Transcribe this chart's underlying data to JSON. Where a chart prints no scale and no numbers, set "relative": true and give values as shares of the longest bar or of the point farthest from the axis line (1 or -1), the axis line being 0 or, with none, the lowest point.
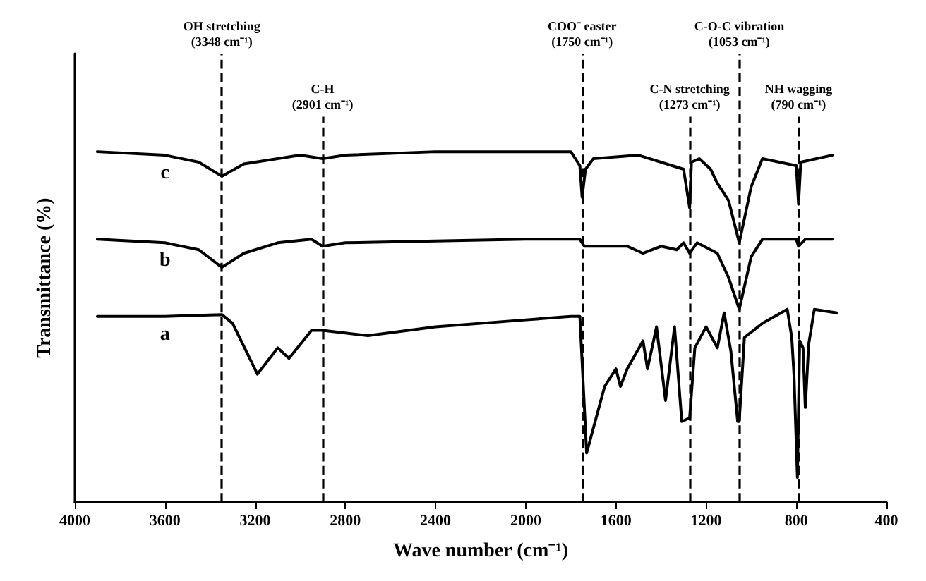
{
  "chart_data": {
    "type": "line",
    "relative": true,
    "xlabel": "Wave number (cm⁻¹)",
    "ylabel": "Transmittance (%)",
    "xlim": [
      4000,
      400
    ],
    "xticks": [
      4000,
      3600,
      3200,
      2800,
      2400,
      2000,
      1600,
      1200,
      800,
      400
    ],
    "tick_labels": "x",
    "legend": false,
    "grid": false,
    "marker": "none",
    "line_style": "solid",
    "series": [
      {
        "name": "c",
        "color": "#000000",
        "x": [
          3900,
          3600,
          3450,
          3348,
          3250,
          3000,
          2901,
          2800,
          2400,
          2000,
          1800,
          1760,
          1750,
          1735,
          1700,
          1500,
          1350,
          1300,
          1273,
          1265,
          1230,
          1180,
          1150,
          1100,
          1053,
          1000,
          950,
          800,
          790,
          780,
          710,
          640
        ],
        "values": [
          1.0,
          0.99,
          0.97,
          0.93,
          0.965,
          0.99,
          0.98,
          0.99,
          1.0,
          1.0,
          1.0,
          0.96,
          0.87,
          0.95,
          0.98,
          0.99,
          0.96,
          0.95,
          0.84,
          0.97,
          0.98,
          0.95,
          0.91,
          0.86,
          0.74,
          0.9,
          0.98,
          0.96,
          0.85,
          0.97,
          0.98,
          0.99
        ]
      },
      {
        "name": "b",
        "color": "#000000",
        "x": [
          3900,
          3600,
          3450,
          3348,
          3250,
          3100,
          2950,
          2901,
          2800,
          2400,
          2000,
          1760,
          1740,
          1550,
          1480,
          1400,
          1330,
          1300,
          1273,
          1240,
          1150,
          1100,
          1053,
          1000,
          950,
          800,
          790,
          760,
          640
        ],
        "values": [
          0.75,
          0.74,
          0.72,
          0.67,
          0.71,
          0.74,
          0.75,
          0.73,
          0.74,
          0.745,
          0.75,
          0.75,
          0.73,
          0.73,
          0.71,
          0.73,
          0.72,
          0.74,
          0.71,
          0.74,
          0.71,
          0.64,
          0.55,
          0.7,
          0.75,
          0.75,
          0.73,
          0.75,
          0.75
        ]
      },
      {
        "name": "a",
        "color": "#000000",
        "x": [
          3900,
          3600,
          3348,
          3300,
          3190,
          3100,
          3050,
          2950,
          2901,
          2700,
          2400,
          2000,
          1800,
          1760,
          1730,
          1650,
          1600,
          1580,
          1550,
          1480,
          1460,
          1420,
          1380,
          1340,
          1308,
          1273,
          1250,
          1200,
          1150,
          1120,
          1090,
          1060,
          1053,
          1030,
          950,
          840,
          820,
          810,
          795,
          785,
          770,
          760,
          745,
          720,
          620
        ],
        "values": [
          0.53,
          0.53,
          0.535,
          0.51,
          0.365,
          0.44,
          0.41,
          0.49,
          0.49,
          0.475,
          0.5,
          0.52,
          0.53,
          0.53,
          0.14,
          0.33,
          0.38,
          0.33,
          0.38,
          0.46,
          0.38,
          0.5,
          0.29,
          0.5,
          0.23,
          0.24,
          0.44,
          0.5,
          0.44,
          0.54,
          0.43,
          0.23,
          0.23,
          0.47,
          0.51,
          0.55,
          0.47,
          0.36,
          0.07,
          0.46,
          0.44,
          0.27,
          0.45,
          0.55,
          0.54
        ]
      }
    ],
    "ref_lines": [
      {
        "axis": "x",
        "value": 3348,
        "label": "OH stretching (3348 cm⁻¹)",
        "line_style": "dashed",
        "color": "#000000"
      },
      {
        "axis": "x",
        "value": 2901,
        "label": "C-H (2901 cm⁻¹)",
        "line_style": "dashed",
        "color": "#000000"
      },
      {
        "axis": "x",
        "value": 1750,
        "label": "COO⁻ easter (1750 cm⁻¹)",
        "line_style": "dashed",
        "color": "#000000"
      },
      {
        "axis": "x",
        "value": 1273,
        "label": "C-N stretching (1273 cm⁻¹)",
        "line_style": "dashed",
        "color": "#000000"
      },
      {
        "axis": "x",
        "value": 1053,
        "label": "C-O-C vibration (1053 cm⁻¹)",
        "line_style": "dashed",
        "color": "#000000"
      },
      {
        "axis": "x",
        "value": 790,
        "label": "NH wagging (790 cm⁻¹)",
        "line_style": "dashed",
        "color": "#000000"
      }
    ]
  }
}
